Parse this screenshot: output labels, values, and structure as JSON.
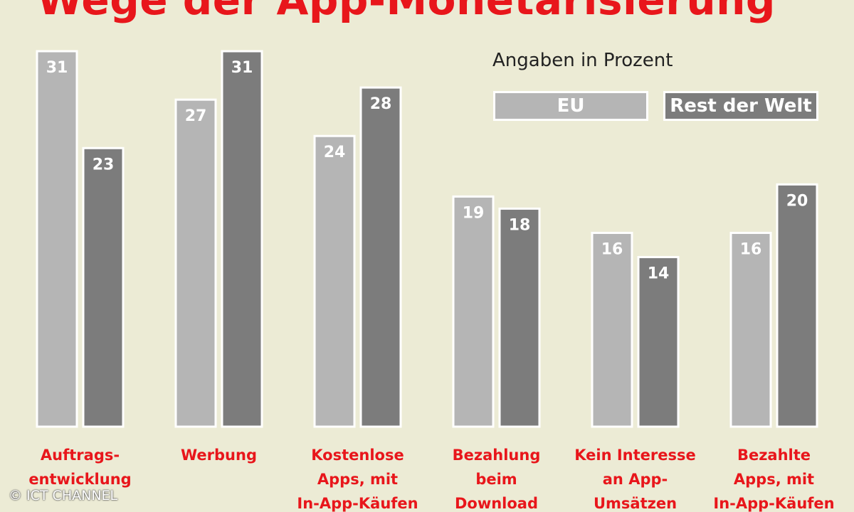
{
  "title": "Wege der App-Monetarisierung",
  "note": "Angaben in Prozent",
  "copyright": "© ICT CHANNEL",
  "colors": {
    "eu": "#b5b5b5",
    "rest_der_welt": "#7c7c7c",
    "labels": "#e8161b",
    "background": "#ecebd5"
  },
  "chart_data": {
    "type": "bar",
    "title": "Wege der App-Monetarisierung",
    "ylabel": "Angaben in Prozent",
    "categories": [
      [
        "Auftrags-",
        "entwicklung"
      ],
      [
        "Werbung"
      ],
      [
        "Kostenlose",
        "Apps, mit",
        "In-App-Käufen"
      ],
      [
        "Bezahlung",
        "beim",
        "Download"
      ],
      [
        "Kein Interesse",
        "an App-",
        "Umsätzen"
      ],
      [
        "Bezahlte",
        "Apps, mit",
        "In-App-Käufen"
      ]
    ],
    "series": [
      {
        "name": "EU",
        "values": [
          31,
          27,
          24,
          19,
          16,
          16
        ]
      },
      {
        "name": "Rest der Welt",
        "values": [
          23,
          31,
          28,
          18,
          14,
          20
        ]
      }
    ],
    "ylim": [
      0,
      31
    ],
    "grid": false,
    "legend": "top-right",
    "data_labels": true
  }
}
